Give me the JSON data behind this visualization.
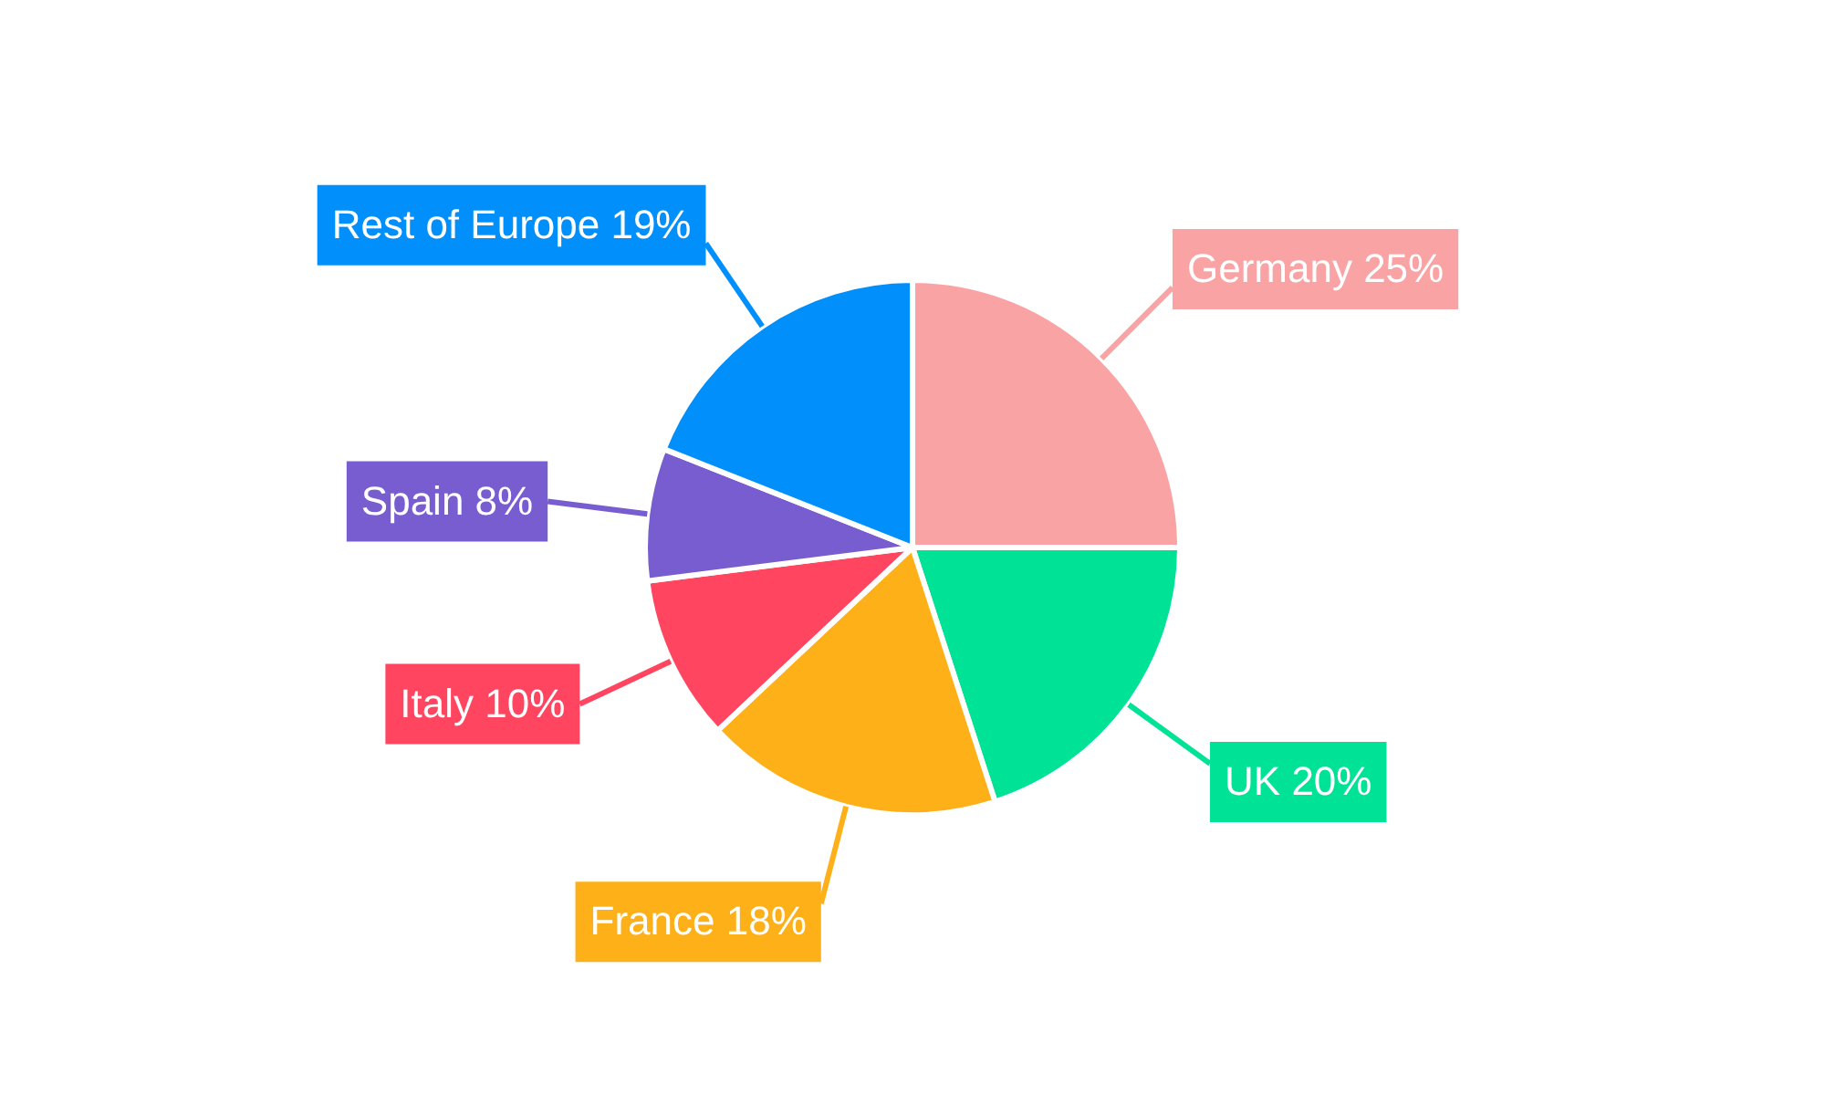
{
  "chart_data": {
    "type": "pie",
    "categories": [
      "Germany",
      "UK",
      "France",
      "Italy",
      "Spain",
      "Rest of Europe"
    ],
    "values": [
      25,
      20,
      18,
      10,
      8,
      19
    ],
    "value_labels": [
      "25%",
      "20%",
      "18%",
      "10%",
      "8%",
      "19%"
    ],
    "colors": [
      "#f9a3a4",
      "#00e396",
      "#feb019",
      "#ff4560",
      "#775dd0",
      "#008ffb"
    ],
    "legend": false
  }
}
